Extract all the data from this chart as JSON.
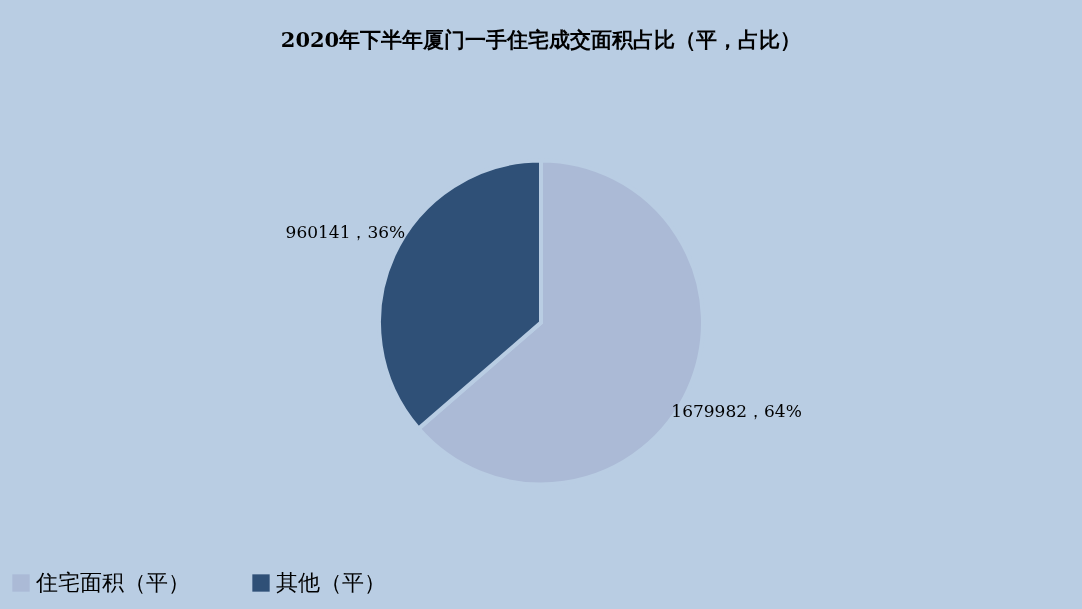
{
  "chart_data": {
    "type": "pie",
    "title": "2020年下半年厦门一手住宅成交面积占比（平，占比）",
    "categories": [
      "住宅面积（平）",
      "其他（平）"
    ],
    "values": [
      1679982,
      960141
    ],
    "colors": [
      "#abbad6",
      "#2f5077"
    ],
    "value_labels": [
      "1679982，64%",
      "960141，36%"
    ],
    "legend": "bottom"
  }
}
